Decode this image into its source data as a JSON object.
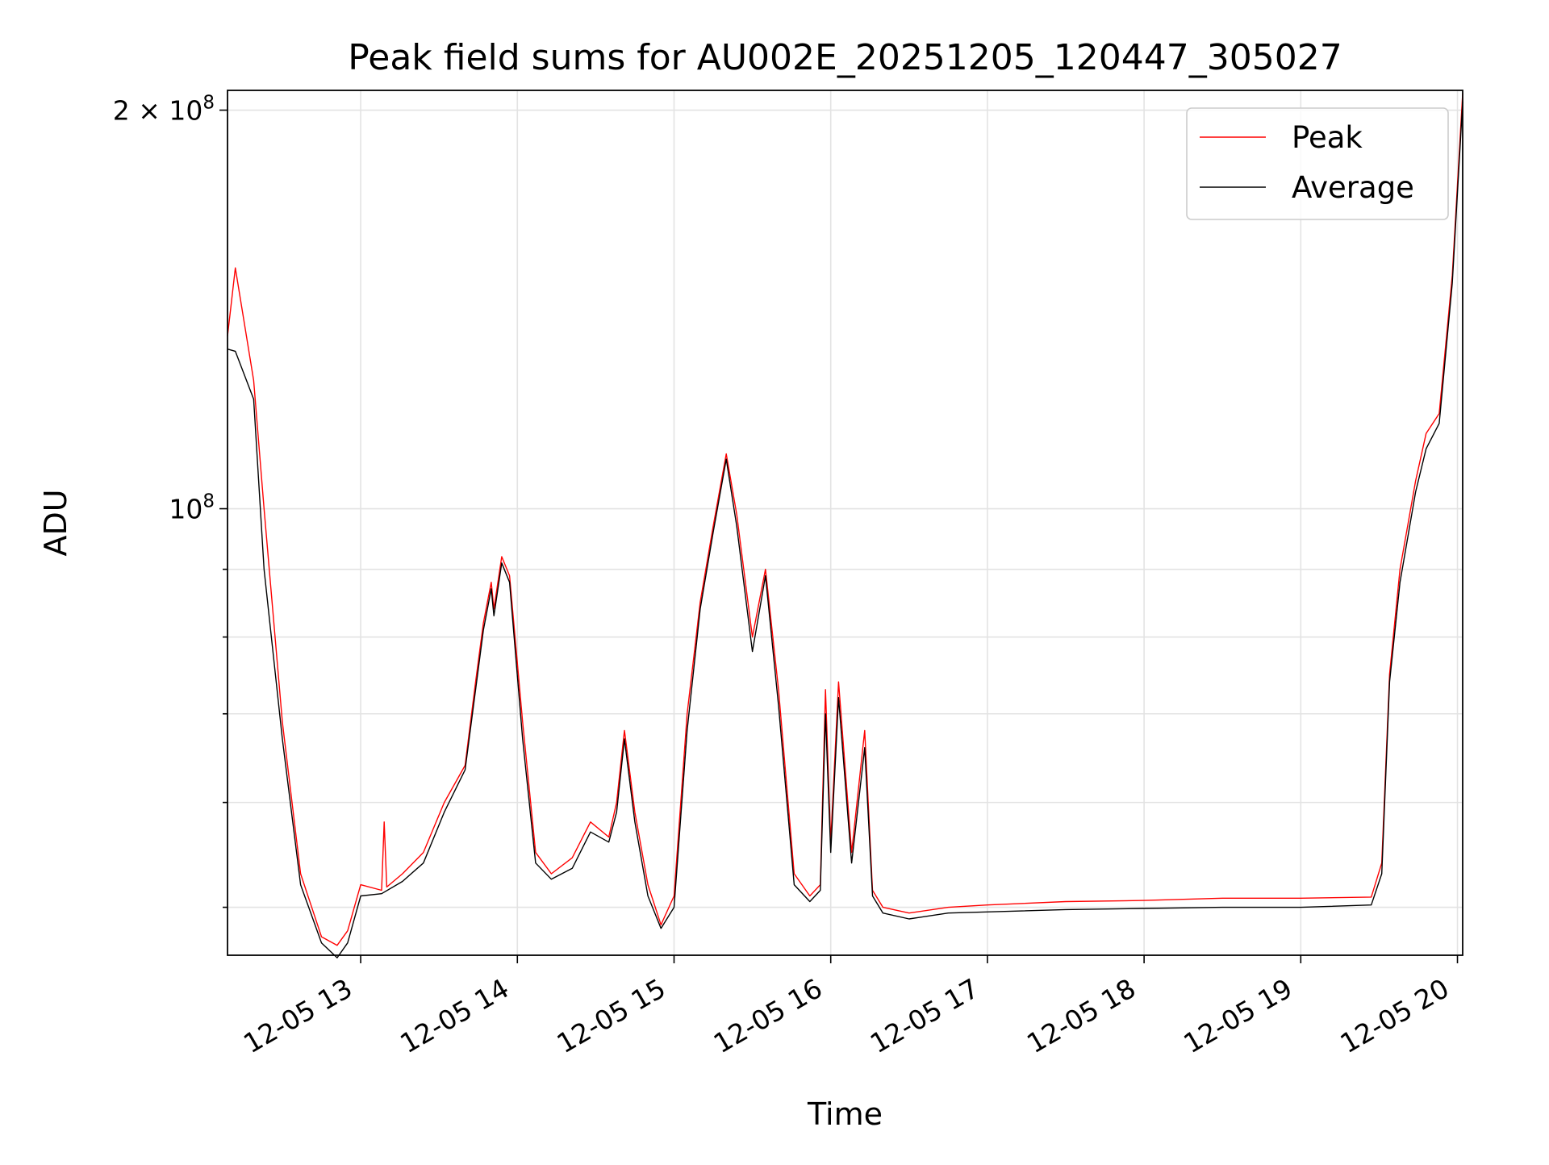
{
  "chart_data": {
    "type": "line",
    "title": "Peak field sums for AU002E_20251205_120447_305027",
    "xlabel": "Time",
    "ylabel": "ADU",
    "yscale": "log",
    "xlim": [
      "2025-12-05 12:09",
      "2025-12-05 20:02"
    ],
    "ylim": [
      46000000,
      207000000
    ],
    "grid": true,
    "legend_position": "upper right",
    "x_ticks": [
      {
        "value": "2025-12-05 13:00",
        "label": "12-05 13"
      },
      {
        "value": "2025-12-05 14:00",
        "label": "12-05 14"
      },
      {
        "value": "2025-12-05 15:00",
        "label": "12-05 15"
      },
      {
        "value": "2025-12-05 16:00",
        "label": "12-05 16"
      },
      {
        "value": "2025-12-05 17:00",
        "label": "12-05 17"
      },
      {
        "value": "2025-12-05 18:00",
        "label": "12-05 18"
      },
      {
        "value": "2025-12-05 19:00",
        "label": "12-05 19"
      },
      {
        "value": "2025-12-05 20:00",
        "label": "12-05 20"
      }
    ],
    "y_ticks": [
      {
        "value": 100000000,
        "base": "10",
        "exp": "8",
        "coef": ""
      },
      {
        "value": 200000000,
        "base": "10",
        "exp": "8",
        "coef": "2 ×"
      }
    ],
    "y_minor_ticks": [
      50000000,
      60000000,
      70000000,
      80000000,
      90000000
    ],
    "series": [
      {
        "name": "Peak",
        "color": "#ff0000",
        "points": [
          [
            "2025-12-05 12:09",
            135000000
          ],
          [
            "2025-12-05 12:12",
            152000000
          ],
          [
            "2025-12-05 12:19",
            125000000
          ],
          [
            "2025-12-05 12:23",
            100000000
          ],
          [
            "2025-12-05 12:30",
            69000000
          ],
          [
            "2025-12-05 12:37",
            53000000
          ],
          [
            "2025-12-05 12:45",
            47500000
          ],
          [
            "2025-12-05 12:51",
            46800000
          ],
          [
            "2025-12-05 12:55",
            48000000
          ],
          [
            "2025-12-05 13:00",
            52000000
          ],
          [
            "2025-12-05 13:08",
            51500000
          ],
          [
            "2025-12-05 13:09",
            58000000
          ],
          [
            "2025-12-05 13:10",
            51800000
          ],
          [
            "2025-12-05 13:16",
            53000000
          ],
          [
            "2025-12-05 13:24",
            55000000
          ],
          [
            "2025-12-05 13:32",
            60000000
          ],
          [
            "2025-12-05 13:40",
            64000000
          ],
          [
            "2025-12-05 13:44",
            74000000
          ],
          [
            "2025-12-05 13:47",
            82000000
          ],
          [
            "2025-12-05 13:50",
            88000000
          ],
          [
            "2025-12-05 13:51",
            84000000
          ],
          [
            "2025-12-05 13:54",
            92000000
          ],
          [
            "2025-12-05 13:57",
            89000000
          ],
          [
            "2025-12-05 14:02",
            69000000
          ],
          [
            "2025-12-05 14:07",
            55000000
          ],
          [
            "2025-12-05 14:13",
            53000000
          ],
          [
            "2025-12-05 14:21",
            54500000
          ],
          [
            "2025-12-05 14:28",
            58000000
          ],
          [
            "2025-12-05 14:35",
            56500000
          ],
          [
            "2025-12-05 14:38",
            60000000
          ],
          [
            "2025-12-05 14:41",
            68000000
          ],
          [
            "2025-12-05 14:45",
            59000000
          ],
          [
            "2025-12-05 14:50",
            52000000
          ],
          [
            "2025-12-05 14:55",
            48500000
          ],
          [
            "2025-12-05 15:00",
            51000000
          ],
          [
            "2025-12-05 15:05",
            70000000
          ],
          [
            "2025-12-05 15:10",
            85000000
          ],
          [
            "2025-12-05 15:15",
            97000000
          ],
          [
            "2025-12-05 15:20",
            110000000
          ],
          [
            "2025-12-05 15:24",
            99000000
          ],
          [
            "2025-12-05 15:30",
            80000000
          ],
          [
            "2025-12-05 15:35",
            90000000
          ],
          [
            "2025-12-05 15:40",
            73000000
          ],
          [
            "2025-12-05 15:46",
            53000000
          ],
          [
            "2025-12-05 15:52",
            51000000
          ],
          [
            "2025-12-05 15:56",
            52000000
          ],
          [
            "2025-12-05 15:58",
            73000000
          ],
          [
            "2025-12-05 16:00",
            56000000
          ],
          [
            "2025-12-05 16:03",
            74000000
          ],
          [
            "2025-12-05 16:08",
            55000000
          ],
          [
            "2025-12-05 16:13",
            68000000
          ],
          [
            "2025-12-05 16:16",
            51500000
          ],
          [
            "2025-12-05 16:20",
            50000000
          ],
          [
            "2025-12-05 16:30",
            49500000
          ],
          [
            "2025-12-05 16:45",
            50000000
          ],
          [
            "2025-12-05 17:00",
            50200000
          ],
          [
            "2025-12-05 17:30",
            50500000
          ],
          [
            "2025-12-05 18:00",
            50600000
          ],
          [
            "2025-12-05 18:30",
            50800000
          ],
          [
            "2025-12-05 19:00",
            50800000
          ],
          [
            "2025-12-05 19:27",
            50900000
          ],
          [
            "2025-12-05 19:31",
            54000000
          ],
          [
            "2025-12-05 19:34",
            75000000
          ],
          [
            "2025-12-05 19:38",
            90000000
          ],
          [
            "2025-12-05 19:44",
            105000000
          ],
          [
            "2025-12-05 19:48",
            114000000
          ],
          [
            "2025-12-05 19:53",
            118000000
          ],
          [
            "2025-12-05 19:58",
            150000000
          ],
          [
            "2025-12-05 20:02",
            206000000
          ]
        ]
      },
      {
        "name": "Average",
        "color": "#000000",
        "points": [
          [
            "2025-12-05 12:09",
            132000000
          ],
          [
            "2025-12-05 12:12",
            131500000
          ],
          [
            "2025-12-05 12:19",
            121000000
          ],
          [
            "2025-12-05 12:23",
            90000000
          ],
          [
            "2025-12-05 12:30",
            67000000
          ],
          [
            "2025-12-05 12:37",
            52000000
          ],
          [
            "2025-12-05 12:45",
            47000000
          ],
          [
            "2025-12-05 12:51",
            45800000
          ],
          [
            "2025-12-05 12:55",
            47000000
          ],
          [
            "2025-12-05 13:00",
            51000000
          ],
          [
            "2025-12-05 13:08",
            51200000
          ],
          [
            "2025-12-05 13:16",
            52300000
          ],
          [
            "2025-12-05 13:24",
            54000000
          ],
          [
            "2025-12-05 13:32",
            59000000
          ],
          [
            "2025-12-05 13:40",
            63500000
          ],
          [
            "2025-12-05 13:44",
            73000000
          ],
          [
            "2025-12-05 13:47",
            81000000
          ],
          [
            "2025-12-05 13:50",
            87000000
          ],
          [
            "2025-12-05 13:51",
            83000000
          ],
          [
            "2025-12-05 13:54",
            91000000
          ],
          [
            "2025-12-05 13:57",
            88000000
          ],
          [
            "2025-12-05 14:02",
            67000000
          ],
          [
            "2025-12-05 14:07",
            54000000
          ],
          [
            "2025-12-05 14:13",
            52500000
          ],
          [
            "2025-12-05 14:21",
            53500000
          ],
          [
            "2025-12-05 14:28",
            57000000
          ],
          [
            "2025-12-05 14:35",
            56000000
          ],
          [
            "2025-12-05 14:38",
            59000000
          ],
          [
            "2025-12-05 14:41",
            67000000
          ],
          [
            "2025-12-05 14:45",
            58000000
          ],
          [
            "2025-12-05 14:50",
            51000000
          ],
          [
            "2025-12-05 14:55",
            48200000
          ],
          [
            "2025-12-05 15:00",
            50000000
          ],
          [
            "2025-12-05 15:05",
            68000000
          ],
          [
            "2025-12-05 15:10",
            84000000
          ],
          [
            "2025-12-05 15:15",
            96000000
          ],
          [
            "2025-12-05 15:20",
            109000000
          ],
          [
            "2025-12-05 15:24",
            97000000
          ],
          [
            "2025-12-05 15:30",
            78000000
          ],
          [
            "2025-12-05 15:35",
            89000000
          ],
          [
            "2025-12-05 15:40",
            71000000
          ],
          [
            "2025-12-05 15:46",
            52000000
          ],
          [
            "2025-12-05 15:52",
            50500000
          ],
          [
            "2025-12-05 15:56",
            51500000
          ],
          [
            "2025-12-05 15:58",
            70000000
          ],
          [
            "2025-12-05 16:00",
            55000000
          ],
          [
            "2025-12-05 16:03",
            72000000
          ],
          [
            "2025-12-05 16:08",
            54000000
          ],
          [
            "2025-12-05 16:13",
            66000000
          ],
          [
            "2025-12-05 16:16",
            51000000
          ],
          [
            "2025-12-05 16:20",
            49500000
          ],
          [
            "2025-12-05 16:30",
            49000000
          ],
          [
            "2025-12-05 16:45",
            49500000
          ],
          [
            "2025-12-05 17:00",
            49600000
          ],
          [
            "2025-12-05 17:30",
            49800000
          ],
          [
            "2025-12-05 18:00",
            49900000
          ],
          [
            "2025-12-05 18:30",
            50000000
          ],
          [
            "2025-12-05 19:00",
            50000000
          ],
          [
            "2025-12-05 19:27",
            50200000
          ],
          [
            "2025-12-05 19:31",
            53000000
          ],
          [
            "2025-12-05 19:34",
            74000000
          ],
          [
            "2025-12-05 19:38",
            88000000
          ],
          [
            "2025-12-05 19:44",
            103000000
          ],
          [
            "2025-12-05 19:48",
            111000000
          ],
          [
            "2025-12-05 19:53",
            116000000
          ],
          [
            "2025-12-05 19:58",
            148000000
          ],
          [
            "2025-12-05 20:02",
            203000000
          ]
        ]
      }
    ]
  }
}
